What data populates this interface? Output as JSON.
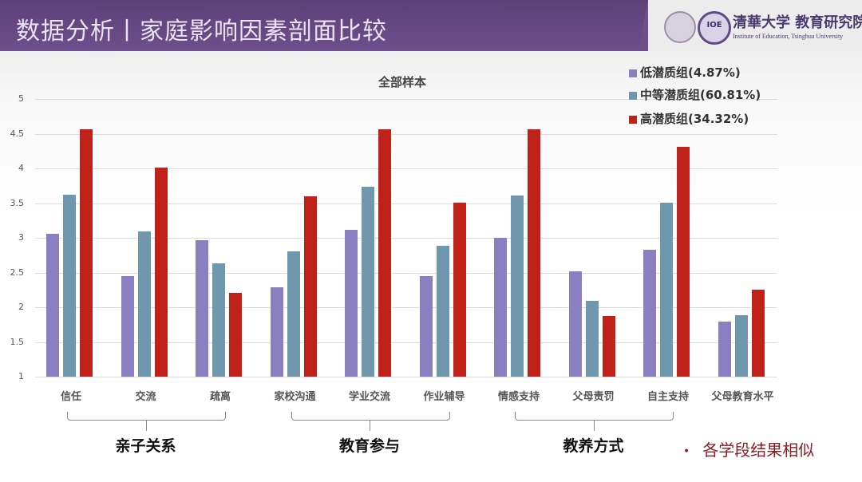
{
  "header": {
    "title": "数据分析丨家庭影响因素剖面比较",
    "institution_cn": "清華大学 教育研究院",
    "institution_en": "Institute of Education, Tsinghua University",
    "seal2_text": "IOE"
  },
  "note": {
    "bullet": "•",
    "text": "各学段结果相似"
  },
  "groups": [
    {
      "label": "亲子关系",
      "from": 0,
      "to": 2
    },
    {
      "label": "教育参与",
      "from": 3,
      "to": 5
    },
    {
      "label": "教养方式",
      "from": 6,
      "to": 8
    }
  ],
  "colors": {
    "low": "#8a7fc0",
    "mid": "#6f97ae",
    "high": "#c0221a",
    "header": "#634581"
  },
  "chart_data": {
    "type": "bar",
    "title": "全部样本",
    "xlabel": "",
    "ylabel": "",
    "ylim": [
      1,
      5
    ],
    "yticks": [
      "5",
      "4.5",
      "4",
      "3.5",
      "3",
      "2.5",
      "2",
      "1.5",
      "1"
    ],
    "grid": true,
    "legend_position": "top-right",
    "categories": [
      "信任",
      "交流",
      "疏离",
      "家校沟通",
      "学业交流",
      "作业辅导",
      "情感支持",
      "父母责罚",
      "自主支持",
      "父母教育水平"
    ],
    "series": [
      {
        "name": "低潜质组(4.87%)",
        "color": "#8a7fc0",
        "values": [
          3.06,
          2.45,
          2.97,
          2.29,
          3.12,
          2.45,
          3.0,
          2.52,
          2.83,
          1.79
        ]
      },
      {
        "name": "中等潜质组(60.81%)",
        "color": "#6f97ae",
        "values": [
          3.62,
          3.09,
          2.63,
          2.8,
          3.74,
          2.89,
          3.61,
          2.09,
          3.51,
          1.89
        ]
      },
      {
        "name": "高潜质组(34.32%)",
        "color": "#c0221a",
        "values": [
          4.56,
          4.01,
          2.21,
          3.6,
          4.56,
          3.51,
          4.56,
          1.87,
          4.31,
          2.25
        ]
      }
    ]
  }
}
